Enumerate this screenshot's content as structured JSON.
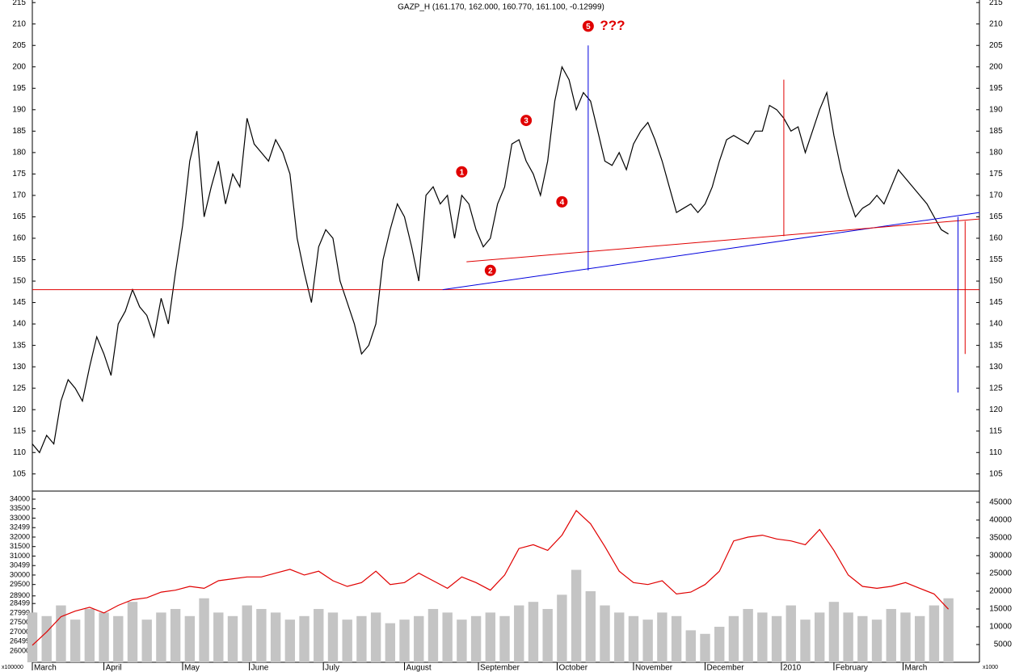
{
  "chart_data": [
    {
      "type": "line",
      "title": "GAZP_H (161.170, 162.000, 160.770, 161.100, -0.12999)",
      "color": "#000000",
      "xlim": [
        0,
        397
      ],
      "ylim": [
        101,
        215.6
      ],
      "yticks": [
        105,
        110,
        115,
        120,
        125,
        130,
        135,
        140,
        145,
        150,
        155,
        160,
        165,
        170,
        175,
        180,
        185,
        190,
        195,
        200,
        205,
        210,
        215
      ],
      "x": [
        0,
        3,
        6,
        9,
        12,
        15,
        18,
        21,
        24,
        27,
        30,
        33,
        36,
        39,
        42,
        45,
        48,
        51,
        54,
        57,
        60,
        63,
        66,
        69,
        72,
        75,
        78,
        81,
        84,
        87,
        90,
        93,
        96,
        99,
        102,
        105,
        108,
        111,
        114,
        117,
        120,
        123,
        126,
        129,
        132,
        135,
        138,
        141,
        144,
        147,
        150,
        153,
        156,
        159,
        162,
        165,
        168,
        171,
        174,
        177,
        180,
        183,
        186,
        189,
        192,
        195,
        198,
        201,
        204,
        207,
        210,
        213,
        216,
        219,
        222,
        225,
        228,
        231,
        234,
        237,
        240,
        243,
        246,
        249,
        252,
        255,
        258,
        261,
        264,
        267,
        270,
        273,
        276,
        279,
        282,
        285,
        288,
        291,
        294,
        297,
        300,
        303,
        306,
        309,
        312,
        315,
        318,
        321,
        324,
        327,
        330,
        333,
        336,
        339,
        342,
        345,
        348,
        351,
        354,
        357,
        360,
        363,
        366,
        369,
        372,
        375,
        378,
        381,
        384
      ],
      "values": [
        112,
        110,
        114,
        112,
        122,
        127,
        125,
        122,
        130,
        137,
        133,
        128,
        140,
        143,
        148,
        144,
        142,
        137,
        146,
        140,
        152,
        163,
        178,
        185,
        165,
        172,
        178,
        168,
        175,
        172,
        188,
        182,
        180,
        178,
        183,
        180,
        175,
        160,
        152,
        145,
        158,
        162,
        160,
        150,
        145,
        140,
        133,
        135,
        140,
        155,
        162,
        168,
        165,
        158,
        150,
        170,
        172,
        168,
        170,
        160,
        170,
        168,
        162,
        158,
        160,
        168,
        172,
        182,
        183,
        178,
        175,
        170,
        178,
        192,
        200,
        197,
        190,
        194,
        192,
        185,
        178,
        177,
        180,
        176,
        182,
        185,
        187,
        183,
        178,
        172,
        166,
        167,
        168,
        166,
        168,
        172,
        178,
        183,
        184,
        183,
        182,
        185,
        185,
        191,
        190,
        188,
        185,
        186,
        180,
        185,
        190,
        194,
        184,
        176,
        170,
        165,
        167,
        168,
        170,
        168,
        172,
        176,
        174,
        172,
        170,
        168,
        165,
        162,
        161
      ],
      "lines": [
        {
          "color": "#e00000",
          "points": [
            [
              0,
              148
            ],
            [
              397,
              148
            ]
          ]
        },
        {
          "color": "#0000dd",
          "points": [
            [
              172,
              148
            ],
            [
              397,
              166
            ]
          ]
        },
        {
          "color": "#e00000",
          "points": [
            [
              182,
              154.5
            ],
            [
              397,
              164.5
            ]
          ]
        },
        {
          "color": "#0000dd",
          "points": [
            [
              233,
              152.5
            ],
            [
              233,
              205
            ]
          ]
        },
        {
          "color": "#e00000",
          "points": [
            [
              315,
              160.5
            ],
            [
              315,
              197
            ]
          ]
        },
        {
          "color": "#0000dd",
          "points": [
            [
              388,
              165
            ],
            [
              388,
              124
            ]
          ]
        },
        {
          "color": "#e00000",
          "points": [
            [
              391,
              164
            ],
            [
              391,
              133
            ]
          ]
        }
      ],
      "annotations": [
        {
          "text": "1",
          "x": 180,
          "y": 175.5
        },
        {
          "text": "2",
          "x": 192,
          "y": 152.5
        },
        {
          "text": "3",
          "x": 207,
          "y": 187.5
        },
        {
          "text": "4",
          "x": 222,
          "y": 168.5
        },
        {
          "text": "5",
          "x": 233,
          "y": 209.5
        },
        {
          "text": "???",
          "x": 242,
          "y": 209.5
        }
      ]
    },
    {
      "type": "bar",
      "color": "#c4c4c4",
      "axis": "y2",
      "line_color": "#e00000",
      "xlim": [
        0,
        397
      ],
      "xticks": [
        {
          "value": 0,
          "label": "March"
        },
        {
          "value": 30,
          "label": "April"
        },
        {
          "value": 63,
          "label": "May"
        },
        {
          "value": 91,
          "label": "June"
        },
        {
          "value": 122,
          "label": "July"
        },
        {
          "value": 156,
          "label": "August"
        },
        {
          "value": 187,
          "label": "September"
        },
        {
          "value": 220,
          "label": "October"
        },
        {
          "value": 252,
          "label": "November"
        },
        {
          "value": 282,
          "label": "December"
        },
        {
          "value": 314,
          "label": "2010"
        },
        {
          "value": 336,
          "label": "February"
        },
        {
          "value": 365,
          "label": "March"
        }
      ],
      "ylim": [
        25400,
        34340
      ],
      "yticks": [
        26000,
        26499,
        27000,
        27500,
        27999,
        28499,
        28900,
        29500,
        30000,
        30499,
        31000,
        31500,
        32000,
        32499,
        33000,
        33500,
        34000
      ],
      "y2lim": [
        0,
        47700
      ],
      "y2ticks": [
        5000,
        10000,
        15000,
        20000,
        25000,
        30000,
        35000,
        40000,
        45000
      ],
      "ylabel": "x100000",
      "y2label": "x1000",
      "x": [
        0,
        6,
        12,
        18,
        24,
        30,
        36,
        42,
        48,
        54,
        60,
        66,
        72,
        78,
        84,
        90,
        96,
        102,
        108,
        114,
        120,
        126,
        132,
        138,
        144,
        150,
        156,
        162,
        168,
        174,
        180,
        186,
        192,
        198,
        204,
        210,
        216,
        222,
        228,
        234,
        240,
        246,
        252,
        258,
        264,
        270,
        276,
        282,
        288,
        294,
        300,
        306,
        312,
        318,
        324,
        330,
        336,
        342,
        348,
        354,
        360,
        366,
        372,
        378,
        384
      ],
      "values": [
        14000,
        13000,
        16000,
        12000,
        15000,
        14000,
        13000,
        17000,
        12000,
        14000,
        15000,
        13000,
        18000,
        14000,
        13000,
        16000,
        15000,
        14000,
        12000,
        13000,
        15000,
        14000,
        12000,
        13000,
        14000,
        11000,
        12000,
        13000,
        15000,
        14000,
        12000,
        13000,
        14000,
        13000,
        16000,
        17000,
        15000,
        19000,
        26000,
        20000,
        16000,
        14000,
        13000,
        12000,
        14000,
        13000,
        9000,
        8000,
        10000,
        13000,
        15000,
        14000,
        13000,
        16000,
        12000,
        14000,
        17000,
        14000,
        13000,
        12000,
        15000,
        14000,
        13000,
        16000,
        18000
      ],
      "line_values": [
        26300,
        27000,
        27800,
        28100,
        28300,
        28000,
        28400,
        28700,
        28800,
        29100,
        29200,
        29400,
        29300,
        29700,
        29800,
        29900,
        29900,
        30100,
        30300,
        30000,
        30200,
        29700,
        29400,
        29600,
        30200,
        29500,
        29600,
        30100,
        29700,
        29300,
        29900,
        29600,
        29200,
        30000,
        31400,
        31600,
        31300,
        32100,
        33400,
        32700,
        31500,
        30200,
        29600,
        29500,
        29700,
        29000,
        29100,
        29500,
        30200,
        31800,
        32000,
        32100,
        31900,
        31800,
        31600,
        32400,
        31300,
        30000,
        29400,
        29300,
        29400,
        29600,
        29300,
        29000,
        28200
      ]
    }
  ]
}
